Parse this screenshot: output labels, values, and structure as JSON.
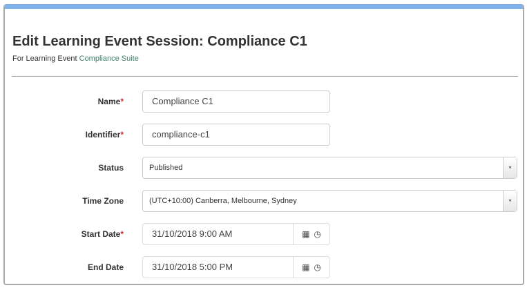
{
  "header": {
    "title": "Edit Learning Event Session: Compliance C1",
    "subtitle_prefix": "For Learning Event",
    "subtitle_link": "Compliance Suite"
  },
  "colors": {
    "accent_bar": "#7fb2ea",
    "link": "#3c7d6a",
    "required": "#c9302c"
  },
  "form": {
    "name": {
      "label": "Name",
      "required": "*",
      "value": "Compliance C1"
    },
    "identifier": {
      "label": "Identifier",
      "required": "*",
      "value": "compliance-c1"
    },
    "status": {
      "label": "Status",
      "value": "Published"
    },
    "timezone": {
      "label": "Time Zone",
      "value": "(UTC+10:00) Canberra, Melbourne, Sydney"
    },
    "start_date": {
      "label": "Start Date",
      "required": "*",
      "value": "31/10/2018 9:00 AM"
    },
    "end_date": {
      "label": "End Date",
      "value": "31/10/2018 5:00 PM"
    }
  },
  "icons": {
    "caret": "▾",
    "calendar": "▦",
    "clock": "◷"
  }
}
